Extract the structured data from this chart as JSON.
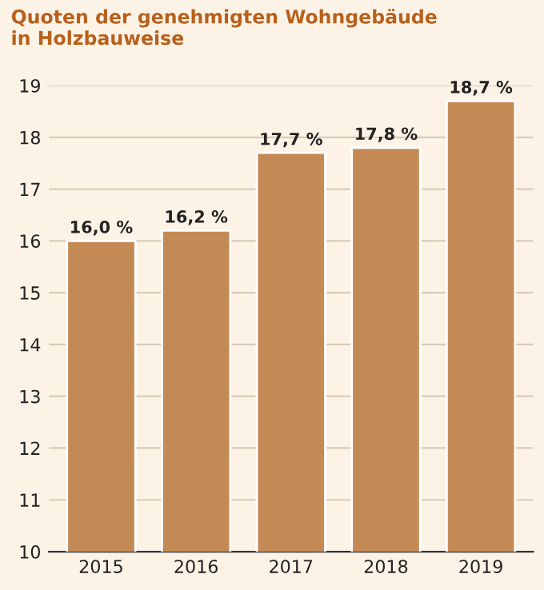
{
  "chart_data": {
    "type": "bar",
    "title": "Quoten der genehmigten Wohngebäude\nin Holzbauweise",
    "categories": [
      "2015",
      "2016",
      "2017",
      "2018",
      "2019"
    ],
    "values": [
      16.0,
      16.2,
      17.7,
      17.8,
      18.7
    ],
    "value_labels": [
      "16,0 %",
      "16,2 %",
      "17,7 %",
      "17,8 %",
      "18,7 %"
    ],
    "color": "#c48a55",
    "ylim": [
      10,
      19
    ],
    "yticks": [
      10,
      11,
      12,
      13,
      14,
      15,
      16,
      17,
      18,
      19
    ],
    "grid": "y"
  }
}
